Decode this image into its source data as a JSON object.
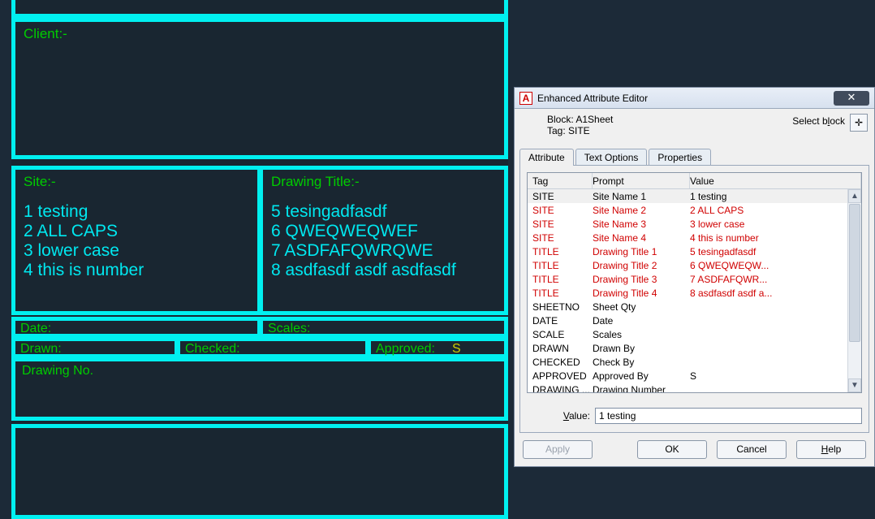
{
  "cad": {
    "border_color": "#00f0f0",
    "label_color": "#00cc00",
    "value_color": "#00e8f0",
    "bg_color": "#192631",
    "client_label": "Client:-",
    "site_label": "Site:-",
    "title_label": "Drawing Title:-",
    "date_label": "Date:",
    "scales_label": "Scales:",
    "drawn_label": "Drawn:",
    "checked_label": "Checked:",
    "approved_label": "Approved:",
    "approved_value": "S",
    "dwgno_label": "Drawing No.",
    "site_lines": [
      "1 testing",
      "2 ALL CAPS",
      "3 lower case",
      "4 this is number"
    ],
    "title_lines": [
      "5 tesingadfasdf",
      "6 QWEQWEQWEF",
      "7 ASDFAFQWRQWE",
      "8 asdfasdf asdf asdfasdf"
    ]
  },
  "dialog": {
    "title": "Enhanced Attribute Editor",
    "block_label": "Block: A1Sheet",
    "tag_label": "Tag: SITE",
    "select_block_label": "Select block",
    "tabs": {
      "attribute": "Attribute",
      "text_options": "Text Options",
      "properties": "Properties"
    },
    "columns": {
      "tag": "Tag",
      "prompt": "Prompt",
      "value": "Value"
    },
    "rows": [
      {
        "tag": "SITE",
        "prompt": "Site Name 1",
        "value": "1 testing",
        "red": false,
        "selected": true
      },
      {
        "tag": "SITE",
        "prompt": "Site Name 2",
        "value": "2 ALL CAPS",
        "red": true
      },
      {
        "tag": "SITE",
        "prompt": "Site Name 3",
        "value": "3 lower case",
        "red": true
      },
      {
        "tag": "SITE",
        "prompt": "Site Name 4",
        "value": "4 this is number",
        "red": true
      },
      {
        "tag": "TITLE",
        "prompt": "Drawing Title 1",
        "value": "5 tesingadfasdf",
        "red": true
      },
      {
        "tag": "TITLE",
        "prompt": "Drawing Title 2",
        "value": "6 QWEQWEQW...",
        "red": true
      },
      {
        "tag": "TITLE",
        "prompt": "Drawing Title 3",
        "value": "7 ASDFAFQWR...",
        "red": true
      },
      {
        "tag": "TITLE",
        "prompt": "Drawing Title 4",
        "value": "8 asdfasdf asdf a...",
        "red": true
      },
      {
        "tag": "SHEETNO",
        "prompt": "Sheet Qty",
        "value": "",
        "red": false
      },
      {
        "tag": "DATE",
        "prompt": "Date",
        "value": "",
        "red": false
      },
      {
        "tag": "SCALE",
        "prompt": "Scales",
        "value": "",
        "red": false
      },
      {
        "tag": "DRAWN",
        "prompt": "Drawn By",
        "value": "",
        "red": false
      },
      {
        "tag": "CHECKED",
        "prompt": "Check By",
        "value": "",
        "red": false
      },
      {
        "tag": "APPROVED",
        "prompt": "Approved By",
        "value": "S",
        "red": false
      },
      {
        "tag": "DRAWING ...",
        "prompt": "Drawing Number",
        "value": "",
        "red": false
      }
    ],
    "value_label": "Value:",
    "value_input": "1 testing",
    "buttons": {
      "apply": "Apply",
      "ok": "OK",
      "cancel": "Cancel",
      "help": "Help"
    }
  }
}
